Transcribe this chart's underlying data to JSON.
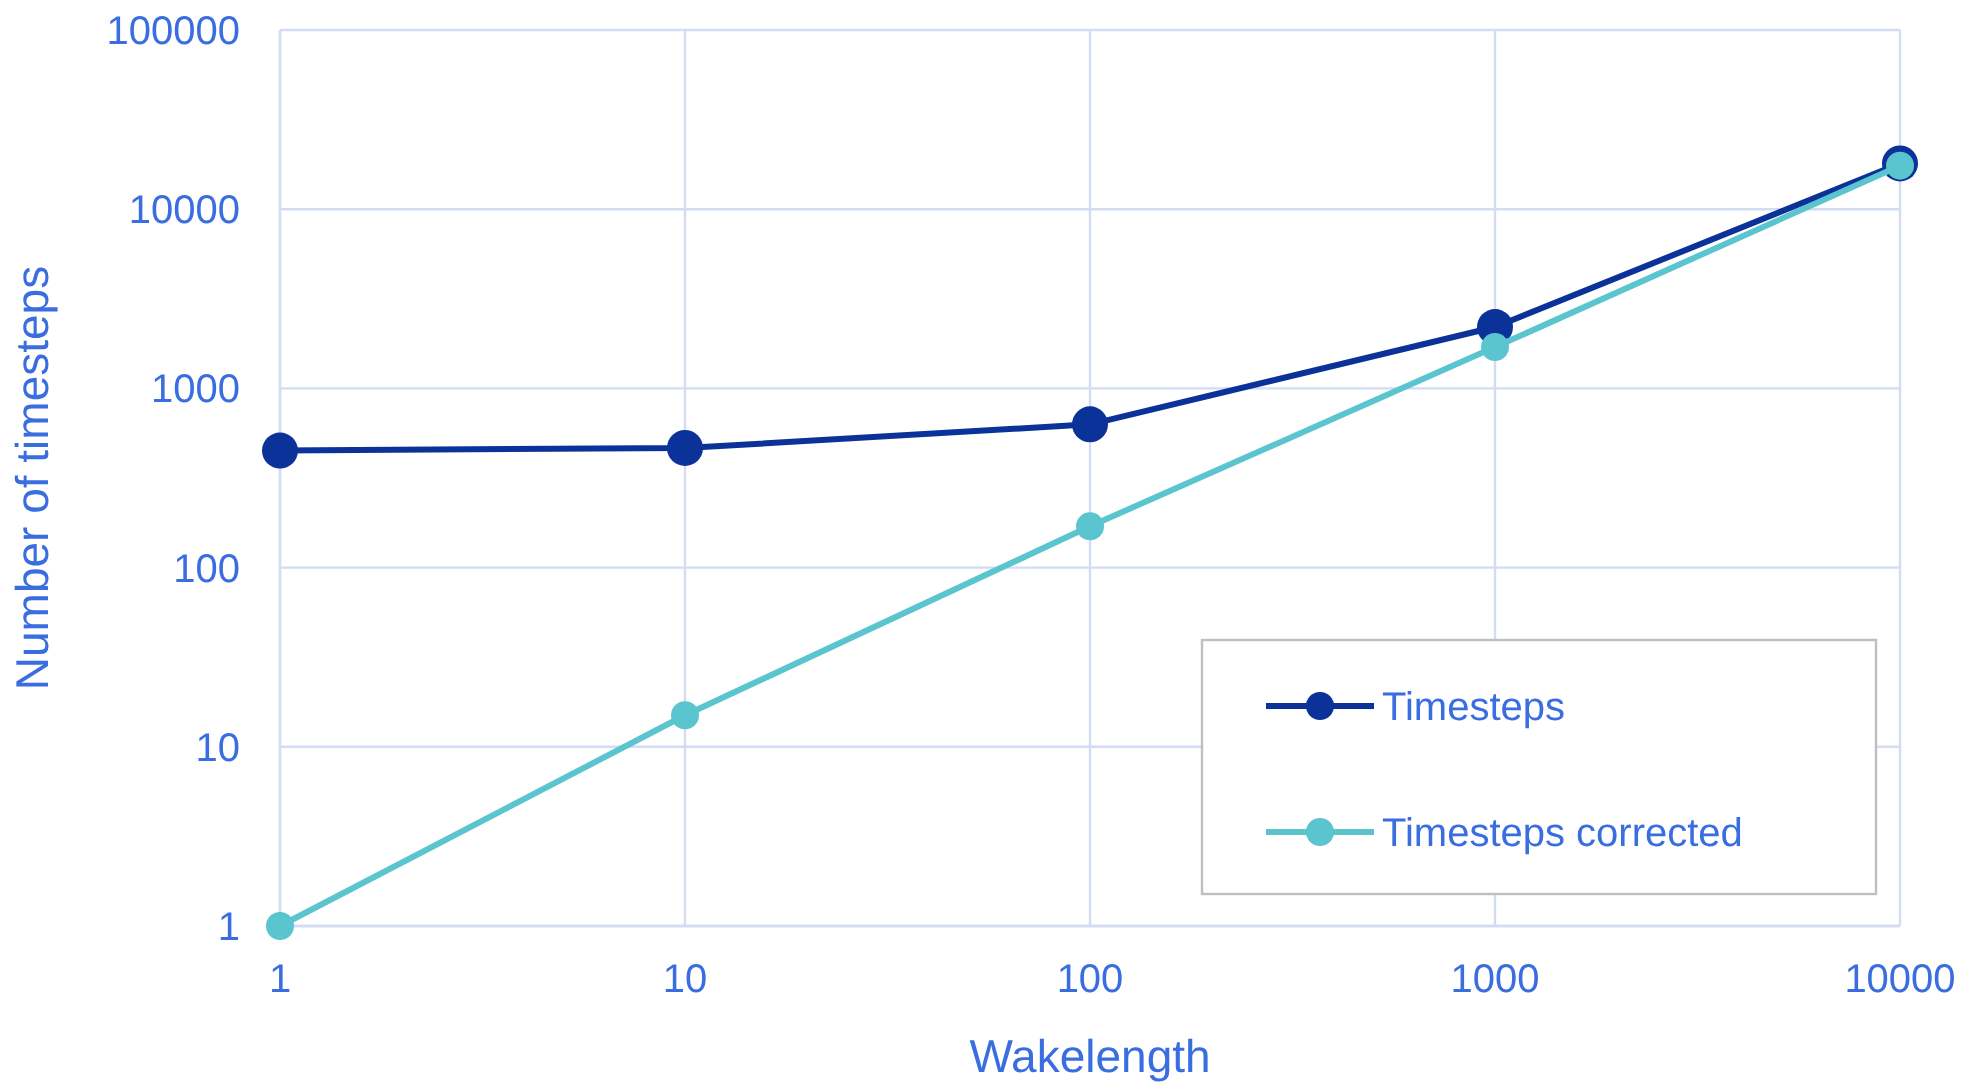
{
  "chart_data": {
    "type": "line",
    "xlabel": "Wakelength",
    "ylabel": "Number of timesteps",
    "x": [
      1,
      10,
      100,
      1000,
      10000
    ],
    "series": [
      {
        "name": "Timesteps",
        "color": "#0a3299",
        "values": [
          450,
          465,
          630,
          2200,
          18000
        ]
      },
      {
        "name": "Timesteps corrected",
        "color": "#5bc5cf",
        "values": [
          1,
          15,
          170,
          1700,
          17500
        ]
      }
    ],
    "log": "xy",
    "xlim": [
      1,
      10000
    ],
    "xticks": [
      1,
      10,
      100,
      1000,
      10000
    ],
    "ylim": [
      1,
      100000
    ],
    "yticks": [
      1,
      10,
      100,
      1000,
      10000,
      100000
    ],
    "grid": true,
    "legend": "bottom right",
    "marker": "circle",
    "line_style": "solid"
  }
}
